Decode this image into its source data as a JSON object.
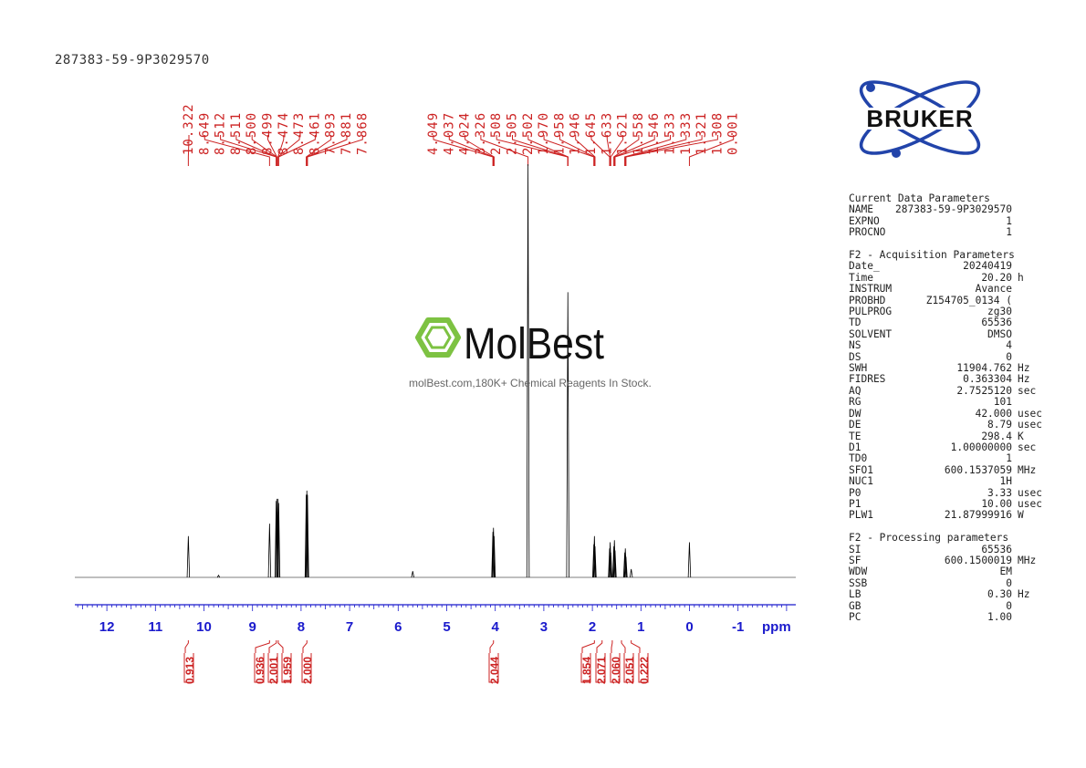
{
  "sample_id": "287383-59-9P3029570",
  "watermark": {
    "brand": "MolBest",
    "tagline": "molBest.com,180K+ Chemical Reagents In Stock.",
    "accent": "#7dc242"
  },
  "logo": {
    "text": "BRUKER",
    "color": "#2244aa"
  },
  "chart_data": {
    "type": "line",
    "x_axis": {
      "label": "ppm",
      "reversed": true,
      "ticks": [
        12,
        11,
        10,
        9,
        8,
        7,
        6,
        5,
        4,
        3,
        2,
        1,
        0,
        -1
      ],
      "tick_labels": [
        "12",
        "11",
        "10",
        "9",
        "8",
        "7",
        "6",
        "5",
        "4",
        "3",
        "2",
        "1",
        "0",
        "-1"
      ],
      "xlim": [
        12.7,
        -2.2
      ]
    },
    "peak_labels": [
      "10.322",
      "8.649",
      "8.512",
      "8.511",
      "8.500",
      "8.499",
      "8.474",
      "8.473",
      "8.461",
      "7.893",
      "7.881",
      "7.868",
      "4.049",
      "4.037",
      "4.024",
      "3.326",
      "2.508",
      "2.505",
      "2.502",
      "1.970",
      "1.958",
      "1.946",
      "1.645",
      "1.633",
      "1.621",
      "1.558",
      "1.546",
      "1.533",
      "1.333",
      "1.321",
      "1.308",
      "0.001"
    ],
    "peaks": [
      {
        "ppm": 10.322,
        "height": 0.1
      },
      {
        "ppm": 9.7,
        "height": 0.005
      },
      {
        "ppm": 8.649,
        "height": 0.13
      },
      {
        "ppm": 8.512,
        "height": 0.185
      },
      {
        "ppm": 8.5,
        "height": 0.19
      },
      {
        "ppm": 8.474,
        "height": 0.19
      },
      {
        "ppm": 8.461,
        "height": 0.18
      },
      {
        "ppm": 7.893,
        "height": 0.2
      },
      {
        "ppm": 7.881,
        "height": 0.21
      },
      {
        "ppm": 7.868,
        "height": 0.2
      },
      {
        "ppm": 5.7,
        "height": 0.015
      },
      {
        "ppm": 4.049,
        "height": 0.11
      },
      {
        "ppm": 4.037,
        "height": 0.12
      },
      {
        "ppm": 4.024,
        "height": 0.1
      },
      {
        "ppm": 3.326,
        "height": 1.0
      },
      {
        "ppm": 2.505,
        "height": 0.69
      },
      {
        "ppm": 1.97,
        "height": 0.08
      },
      {
        "ppm": 1.958,
        "height": 0.1
      },
      {
        "ppm": 1.946,
        "height": 0.075
      },
      {
        "ppm": 1.645,
        "height": 0.07
      },
      {
        "ppm": 1.633,
        "height": 0.085
      },
      {
        "ppm": 1.621,
        "height": 0.06
      },
      {
        "ppm": 1.558,
        "height": 0.075
      },
      {
        "ppm": 1.546,
        "height": 0.09
      },
      {
        "ppm": 1.533,
        "height": 0.065
      },
      {
        "ppm": 1.333,
        "height": 0.06
      },
      {
        "ppm": 1.321,
        "height": 0.07
      },
      {
        "ppm": 1.308,
        "height": 0.05
      },
      {
        "ppm": 1.2,
        "height": 0.02
      },
      {
        "ppm": 0.001,
        "height": 0.085
      }
    ],
    "integrals": [
      {
        "value": "0.913",
        "ppm": 10.322
      },
      {
        "value": "0.936",
        "ppm": 8.65
      },
      {
        "value": "2.001",
        "ppm": 8.51
      },
      {
        "value": "1.959",
        "ppm": 8.47
      },
      {
        "value": "2.000",
        "ppm": 7.88
      },
      {
        "value": "2.044",
        "ppm": 4.037
      },
      {
        "value": "1.854",
        "ppm": 1.958
      },
      {
        "value": "2.071",
        "ppm": 1.8
      },
      {
        "value": "2.060",
        "ppm": 1.59
      },
      {
        "value": "2.051",
        "ppm": 1.4
      },
      {
        "value": "0.222",
        "ppm": 1.2
      }
    ],
    "colors": {
      "trace": "#000000",
      "label": "#cc2222",
      "axis": "#1a1acc"
    }
  },
  "parameters": [
    {
      "title": "Current Data Parameters",
      "rows": [
        {
          "name": "NAME",
          "value": "287383-59-9P3029570",
          "unit": ""
        },
        {
          "name": "EXPNO",
          "value": "1",
          "unit": ""
        },
        {
          "name": "PROCNO",
          "value": "1",
          "unit": ""
        }
      ]
    },
    {
      "title": "F2 - Acquisition Parameters",
      "rows": [
        {
          "name": "Date_",
          "value": "20240419",
          "unit": ""
        },
        {
          "name": "Time",
          "value": "20.20",
          "unit": "h"
        },
        {
          "name": "INSTRUM",
          "value": "Avance",
          "unit": ""
        },
        {
          "name": "PROBHD",
          "value": "Z154705_0134 (",
          "unit": ""
        },
        {
          "name": "PULPROG",
          "value": "zg30",
          "unit": ""
        },
        {
          "name": "TD",
          "value": "65536",
          "unit": ""
        },
        {
          "name": "SOLVENT",
          "value": "DMSO",
          "unit": ""
        },
        {
          "name": "NS",
          "value": "4",
          "unit": ""
        },
        {
          "name": "DS",
          "value": "0",
          "unit": ""
        },
        {
          "name": "SWH",
          "value": "11904.762",
          "unit": "Hz"
        },
        {
          "name": "FIDRES",
          "value": "0.363304",
          "unit": "Hz"
        },
        {
          "name": "AQ",
          "value": "2.7525120",
          "unit": "sec"
        },
        {
          "name": "RG",
          "value": "101",
          "unit": ""
        },
        {
          "name": "DW",
          "value": "42.000",
          "unit": "usec"
        },
        {
          "name": "DE",
          "value": "8.79",
          "unit": "usec"
        },
        {
          "name": "TE",
          "value": "298.4",
          "unit": "K"
        },
        {
          "name": "D1",
          "value": "1.00000000",
          "unit": "sec"
        },
        {
          "name": "TD0",
          "value": "1",
          "unit": ""
        },
        {
          "name": "SFO1",
          "value": "600.1537059",
          "unit": "MHz"
        },
        {
          "name": "NUC1",
          "value": "1H",
          "unit": ""
        },
        {
          "name": "P0",
          "value": "3.33",
          "unit": "usec"
        },
        {
          "name": "P1",
          "value": "10.00",
          "unit": "usec"
        },
        {
          "name": "PLW1",
          "value": "21.87999916",
          "unit": "W"
        }
      ]
    },
    {
      "title": "F2 - Processing parameters",
      "rows": [
        {
          "name": "SI",
          "value": "65536",
          "unit": ""
        },
        {
          "name": "SF",
          "value": "600.1500019",
          "unit": "MHz"
        },
        {
          "name": "WDW",
          "value": "EM",
          "unit": ""
        },
        {
          "name": "SSB",
          "value": "0",
          "unit": ""
        },
        {
          "name": "LB",
          "value": "0.30",
          "unit": "Hz"
        },
        {
          "name": "GB",
          "value": "0",
          "unit": ""
        },
        {
          "name": "PC",
          "value": "1.00",
          "unit": ""
        }
      ]
    }
  ]
}
